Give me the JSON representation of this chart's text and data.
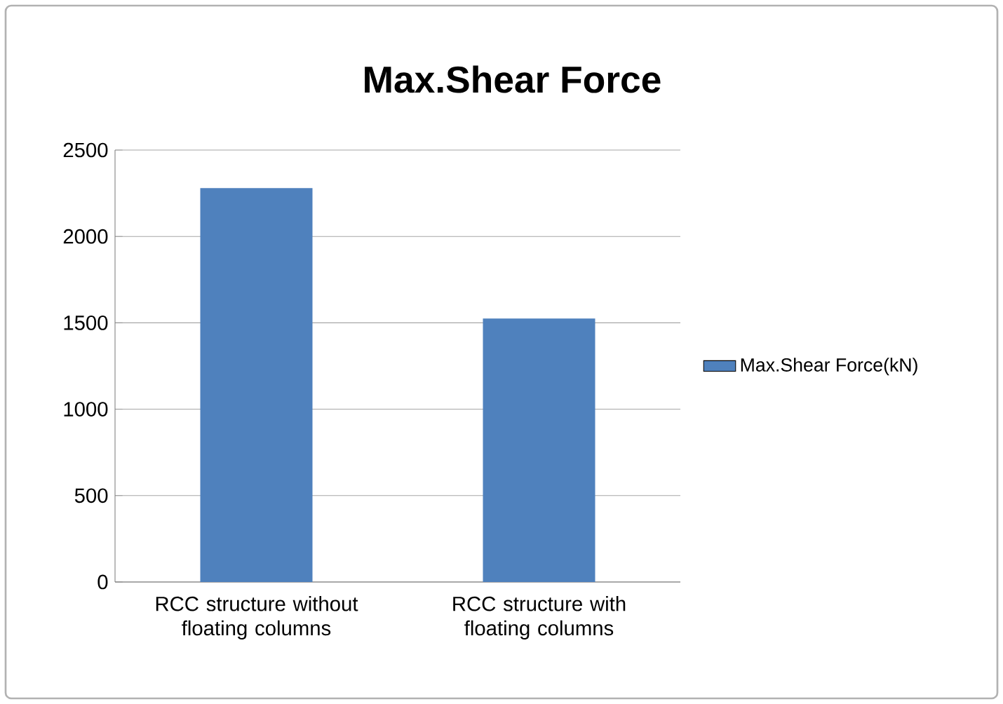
{
  "chart_data": {
    "type": "bar",
    "title": "Max.Shear Force",
    "categories": [
      "RCC structure without floating columns",
      "RCC structure with floating columns"
    ],
    "series": [
      {
        "name": "Max.Shear Force(kN)",
        "color": "#4f81bd",
        "values": [
          2280,
          1525
        ]
      }
    ],
    "ylim": [
      0,
      2500
    ],
    "yticks": [
      0,
      500,
      1000,
      1500,
      2000,
      2500
    ],
    "grid": "y",
    "legend": "right"
  }
}
